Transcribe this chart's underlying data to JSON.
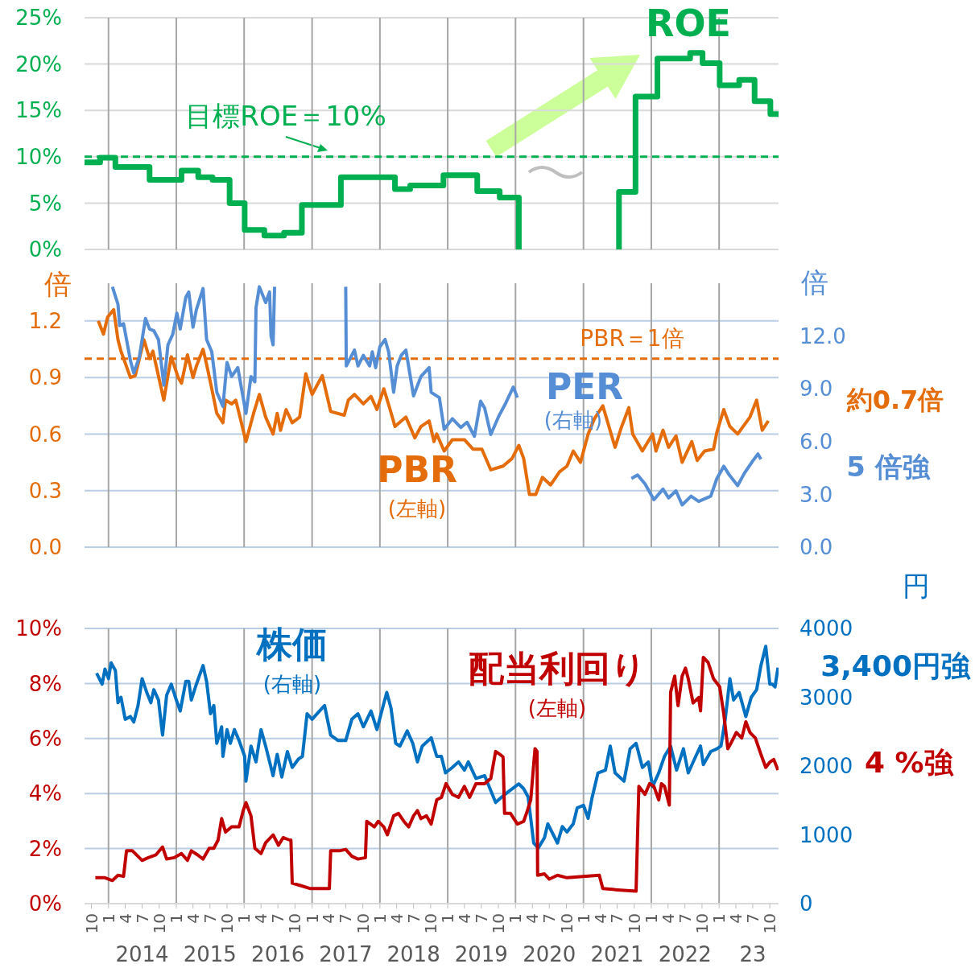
{
  "chart_data": [
    {
      "type": "step",
      "xlim": [
        "2013-08-25",
        "2023-11-17"
      ],
      "xticks": [
        {
          "value": "2014-01",
          "label": null
        },
        {
          "value": "2015-01",
          "label": null
        },
        {
          "value": "2016-01",
          "label": null
        },
        {
          "value": "2017-01",
          "label": null
        },
        {
          "value": "2018-01",
          "label": null
        },
        {
          "value": "2019-01",
          "label": null
        },
        {
          "value": "2020-01",
          "label": null
        },
        {
          "value": "2021-01",
          "label": null
        },
        {
          "value": "2022-01",
          "label": null
        },
        {
          "value": "2023-01",
          "label": null
        }
      ],
      "ylim": [
        0,
        25
      ],
      "yticks": [
        {
          "value": 0,
          "label": "0%"
        },
        {
          "value": 5,
          "label": "5%"
        },
        {
          "value": 10,
          "label": "10%"
        },
        {
          "value": 15,
          "label": "15%"
        },
        {
          "value": 20,
          "label": "20%"
        },
        {
          "value": 25,
          "label": "25%"
        }
      ],
      "grid": true,
      "tick_labels": "y",
      "ref_lines": [
        {
          "axis": "y",
          "value": 10,
          "label": "目標ROE＝10%",
          "color": "#00b050",
          "line_style": "dashed"
        }
      ],
      "series": [
        {
          "name": "ROE",
          "color": "#00b050",
          "x": [
            "2013-08-25",
            "2013-11-17",
            "2014-02-07",
            "2014-08-10",
            "2015-01-29",
            "2015-04-29",
            "2015-07-15",
            "2015-10-15",
            "2016-01-04",
            "2016-04-19",
            "2016-08-03",
            "2016-11-07",
            "2017-06-05",
            "2018-03-23",
            "2018-06-13",
            "2018-12-09",
            "2019-06-09",
            "2019-10-08",
            "2020-01-19",
            "2020-02-07",
            "2021-07-08",
            "2021-07-11",
            "2021-10-08",
            "2022-02-03",
            "2022-07-29",
            "2022-10-04",
            "2023-01-04",
            "2023-04-19",
            "2023-07-11",
            "2023-10-04",
            "2023-11-17"
          ],
          "values": [
            9.4,
            9.9,
            8.9,
            7.5,
            8.5,
            7.8,
            7.5,
            5.0,
            2.1,
            1.5,
            1.8,
            4.8,
            7.8,
            6.5,
            6.9,
            8.0,
            6.3,
            5.6,
            0,
            null,
            0,
            6.2,
            16.5,
            20.6,
            21.2,
            20.1,
            17.7,
            18.3,
            16.0,
            14.6,
            14.6
          ]
        }
      ]
    },
    {
      "type": "line",
      "xlim": [
        "2013-08-25",
        "2023-11-17"
      ],
      "xticks": [
        {
          "value": "2014-01",
          "label": null
        },
        {
          "value": "2015-01",
          "label": null
        },
        {
          "value": "2016-01",
          "label": null
        },
        {
          "value": "2017-01",
          "label": null
        },
        {
          "value": "2018-01",
          "label": null
        },
        {
          "value": "2019-01",
          "label": null
        },
        {
          "value": "2020-01",
          "label": null
        },
        {
          "value": "2021-01",
          "label": null
        },
        {
          "value": "2022-01",
          "label": null
        },
        {
          "value": "2023-01",
          "label": null
        }
      ],
      "ylim": [
        0,
        1.4
      ],
      "yticks": [
        {
          "value": 0,
          "label": "0.0"
        },
        {
          "value": 0.3,
          "label": "0.3"
        },
        {
          "value": 0.6,
          "label": "0.6"
        },
        {
          "value": 0.9,
          "label": "0.9"
        },
        {
          "value": 1.2,
          "label": "1.2"
        }
      ],
      "y2lim": [
        0,
        15
      ],
      "y2ticks": [
        {
          "value": 0,
          "label": "0.0"
        },
        {
          "value": 3,
          "label": "3.0"
        },
        {
          "value": 6,
          "label": "6.0"
        },
        {
          "value": 9,
          "label": "9.0"
        },
        {
          "value": 12,
          "label": "12.0"
        }
      ],
      "ylabel": "倍",
      "y2label": "倍",
      "grid": true,
      "tick_labels": "y",
      "ref_lines": [
        {
          "axis": "y",
          "value": 1,
          "label": "PBR＝1倍",
          "color": "#e46c0a",
          "line_style": "dashed"
        }
      ],
      "annotations": [
        "(右軸)",
        "(左軸)",
        "約0.7倍",
        "5 倍強"
      ],
      "series": [
        {
          "name": "PBR",
          "color": "#e46c0a",
          "axis": "y",
          "x": [
            "2013-11-07",
            "2013-12-05",
            "2013-12-27",
            "2014-01-29",
            "2014-02-21",
            "2014-03-09",
            "2014-04-29",
            "2014-05-25",
            "2014-07-11",
            "2014-08-10",
            "2014-08-28",
            "2014-09-13",
            "2014-10-26",
            "2014-11-17",
            "2014-12-05",
            "2015-01-11",
            "2015-01-29",
            "2015-03-02",
            "2015-04-01",
            "2015-04-19",
            "2015-05-25",
            "2015-06-13",
            "2015-07-11",
            "2015-08-07",
            "2015-09-09",
            "2015-09-23",
            "2015-10-26",
            "2015-11-17",
            "2015-12-05",
            "2016-01-11",
            "2016-02-21",
            "2016-03-23",
            "2016-04-26",
            "2016-06-05",
            "2016-06-27",
            "2016-07-15",
            "2016-08-14",
            "2016-09-16",
            "2016-10-26",
            "2016-11-28",
            "2017-01-01",
            "2017-02-25",
            "2017-04-11",
            "2017-06-23",
            "2017-07-15",
            "2017-08-17",
            "2017-10-04",
            "2017-11-14",
            "2017-12-16",
            "2018-01-22",
            "2018-02-25",
            "2018-03-23",
            "2018-05-21",
            "2018-07-08",
            "2018-08-10",
            "2018-09-23",
            "2018-10-19",
            "2018-11-03",
            "2018-12-13",
            "2019-01-26",
            "2019-04-01",
            "2019-05-17",
            "2019-07-04",
            "2019-08-21",
            "2019-10-26",
            "2019-12-13",
            "2020-01-19",
            "2020-02-14",
            "2020-03-16",
            "2020-04-19",
            "2020-05-25",
            "2020-07-08",
            "2020-08-25",
            "2020-10-04",
            "2020-11-07",
            "2020-12-16",
            "2021-01-26",
            "2021-02-28",
            "2021-04-15",
            "2021-06-20",
            "2021-07-22",
            "2021-09-02",
            "2021-09-23",
            "2021-11-14",
            "2022-01-08",
            "2022-01-26",
            "2022-03-05",
            "2022-04-04",
            "2022-05-14",
            "2022-06-16",
            "2022-08-07",
            "2022-09-05",
            "2022-10-15",
            "2022-12-02",
            "2022-12-20",
            "2023-01-26",
            "2023-02-28",
            "2023-04-11",
            "2023-05-10",
            "2023-06-16",
            "2023-07-22",
            "2023-08-21",
            "2023-09-23"
          ],
          "values": [
            1.2,
            1.13,
            1.22,
            1.26,
            1.1,
            1.04,
            0.9,
            0.91,
            1.1,
            1.0,
            1.04,
            0.97,
            0.78,
            0.91,
            1.01,
            0.9,
            0.87,
            1.02,
            0.9,
            0.96,
            1.05,
            0.97,
            0.84,
            0.71,
            0.66,
            0.78,
            0.76,
            0.78,
            0.71,
            0.56,
            0.71,
            0.81,
            0.69,
            0.6,
            0.71,
            0.62,
            0.73,
            0.66,
            0.69,
            0.92,
            0.81,
            0.91,
            0.72,
            0.7,
            0.78,
            0.81,
            0.76,
            0.8,
            0.73,
            0.84,
            0.73,
            0.64,
            0.69,
            0.58,
            0.64,
            0.67,
            0.56,
            0.6,
            0.51,
            0.57,
            0.57,
            0.52,
            0.52,
            0.41,
            0.43,
            0.47,
            0.54,
            0.47,
            0.28,
            0.28,
            0.37,
            0.33,
            0.4,
            0.43,
            0.51,
            0.45,
            0.6,
            0.68,
            0.75,
            0.53,
            0.63,
            0.74,
            0.6,
            0.51,
            0.6,
            0.51,
            0.62,
            0.53,
            0.59,
            0.45,
            0.56,
            0.46,
            0.51,
            0.52,
            0.61,
            0.73,
            0.64,
            0.6,
            0.64,
            0.69,
            0.78,
            0.62,
            0.67
          ]
        },
        {
          "name": "PER",
          "color": "#558ed5",
          "axis": "y2",
          "x": [
            "2014-01-22",
            "2014-02-21",
            "2014-03-02",
            "2014-03-23",
            "2014-04-08",
            "2014-04-29",
            "2014-05-17",
            "2014-06-16",
            "2014-07-19",
            "2014-08-10",
            "2014-09-02",
            "2014-09-27",
            "2014-10-26",
            "2014-11-17",
            "2014-12-13",
            "2015-01-04",
            "2015-01-22",
            "2015-02-21",
            "2015-03-09",
            "2015-04-01",
            "2015-04-19",
            "2015-05-25",
            "2015-06-13",
            "2015-07-11",
            "2015-08-07",
            "2015-09-09",
            "2015-10-01",
            "2015-10-26",
            "2015-11-28",
            "2016-01-11",
            "2016-02-07",
            "2016-02-28",
            "2016-03-05",
            "2016-03-23",
            "2016-04-26",
            "2016-05-17",
            "2016-05-25",
            "2016-06-05",
            "2016-06-13",
            "2016-07-01",
            "2017-07-01",
            "2017-07-04",
            "2017-08-17",
            "2017-09-05",
            "2017-10-04",
            "2017-11-07",
            "2017-11-21",
            "2017-12-09",
            "2018-01-01",
            "2018-01-29",
            "2018-02-17",
            "2018-03-16",
            "2018-04-04",
            "2018-04-26",
            "2018-05-21",
            "2018-07-01",
            "2018-08-10",
            "2018-09-23",
            "2018-10-04",
            "2018-11-17",
            "2018-12-13",
            "2019-01-26",
            "2019-03-13",
            "2019-04-15",
            "2019-05-25",
            "2019-06-27",
            "2019-07-19",
            "2019-08-21",
            "2019-10-01",
            "2019-11-10",
            "2019-12-20",
            "2020-01-11",
            "2020-02-07",
            "2021-09-16",
            "2021-10-19",
            "2021-11-28",
            "2022-01-15",
            "2022-03-05",
            "2022-04-04",
            "2022-05-14",
            "2022-06-16",
            "2022-08-03",
            "2022-09-13",
            "2022-11-17",
            "2022-12-20",
            "2023-01-26",
            "2023-02-25",
            "2023-04-11",
            "2023-05-17",
            "2023-07-01",
            "2023-07-29",
            "2023-08-14"
          ],
          "values": [
            14.8,
            13.8,
            12.6,
            12.7,
            11.8,
            10.6,
            9.9,
            10.8,
            13.0,
            12.4,
            12.3,
            11.8,
            9.2,
            11.5,
            12.1,
            13.3,
            12.4,
            14.2,
            14.5,
            12.5,
            13.5,
            14.7,
            11.8,
            11.1,
            8.8,
            8.0,
            10.5,
            9.7,
            10.2,
            7.6,
            9.7,
            9.4,
            13.6,
            14.8,
            13.9,
            14.5,
            12.0,
            11.5,
            14.8,
            null,
            14.8,
            10.3,
            11.2,
            10.3,
            10.9,
            10.3,
            11.1,
            10.2,
            11.4,
            11.8,
            11.1,
            8.8,
            10.3,
            10.9,
            11.2,
            8.6,
            9.7,
            10.2,
            8.8,
            8.5,
            6.7,
            7.3,
            6.8,
            7.1,
            6.3,
            8.3,
            7.9,
            6.4,
            7.4,
            8.2,
            9.1,
            8.5,
            null,
            3.9,
            4.1,
            3.6,
            2.7,
            3.3,
            2.8,
            3.2,
            2.4,
            2.9,
            2.6,
            2.9,
            3.9,
            4.6,
            4.1,
            3.5,
            4.2,
            4.9,
            5.3,
            5.0
          ]
        }
      ]
    },
    {
      "type": "line",
      "xlim": [
        "2013-08-25",
        "2023-11-17"
      ],
      "xticks": [
        {
          "value": "2013-10",
          "label": "10"
        },
        {
          "value": "2014-01",
          "label": "1"
        },
        {
          "value": "2014-04",
          "label": "4"
        },
        {
          "value": "2014-07",
          "label": "7"
        },
        {
          "value": "2014-10",
          "label": "10"
        },
        {
          "value": "2015-01",
          "label": "1"
        },
        {
          "value": "2015-04",
          "label": "4"
        },
        {
          "value": "2015-07",
          "label": "7"
        },
        {
          "value": "2015-10",
          "label": "10"
        },
        {
          "value": "2016-01",
          "label": "1"
        },
        {
          "value": "2016-04",
          "label": "4"
        },
        {
          "value": "2016-07",
          "label": "7"
        },
        {
          "value": "2016-10",
          "label": "10"
        },
        {
          "value": "2017-01",
          "label": "1"
        },
        {
          "value": "2017-04",
          "label": "4"
        },
        {
          "value": "2017-07",
          "label": "7"
        },
        {
          "value": "2017-10",
          "label": "10"
        },
        {
          "value": "2018-01",
          "label": "1"
        },
        {
          "value": "2018-04",
          "label": "4"
        },
        {
          "value": "2018-07",
          "label": "7"
        },
        {
          "value": "2018-10",
          "label": "10"
        },
        {
          "value": "2019-01",
          "label": "1"
        },
        {
          "value": "2019-04",
          "label": "4"
        },
        {
          "value": "2019-07",
          "label": "7"
        },
        {
          "value": "2019-10",
          "label": "10"
        },
        {
          "value": "2020-01",
          "label": "1"
        },
        {
          "value": "2020-04",
          "label": "4"
        },
        {
          "value": "2020-07",
          "label": "7"
        },
        {
          "value": "2020-10",
          "label": "10"
        },
        {
          "value": "2021-01",
          "label": "1"
        },
        {
          "value": "2021-04",
          "label": "4"
        },
        {
          "value": "2021-07",
          "label": "7"
        },
        {
          "value": "2021-10",
          "label": "10"
        },
        {
          "value": "2022-01",
          "label": "1"
        },
        {
          "value": "2022-04",
          "label": "4"
        },
        {
          "value": "2022-07",
          "label": "7"
        },
        {
          "value": "2022-10",
          "label": "10"
        },
        {
          "value": "2023-01",
          "label": "1"
        },
        {
          "value": "2023-04",
          "label": "4"
        },
        {
          "value": "2023-07",
          "label": "7"
        },
        {
          "value": "2023-10",
          "label": "10"
        }
      ],
      "x2lim": [
        "2013-08-25",
        "2023-11-17"
      ],
      "x2ticks": [
        {
          "value": "2014-07",
          "label": "2014"
        },
        {
          "value": "2015-07",
          "label": "2015"
        },
        {
          "value": "2016-07",
          "label": "2016"
        },
        {
          "value": "2017-07",
          "label": "2017"
        },
        {
          "value": "2018-07",
          "label": "2018"
        },
        {
          "value": "2019-07",
          "label": "2019"
        },
        {
          "value": "2020-07",
          "label": "2020"
        },
        {
          "value": "2021-07",
          "label": "2021"
        },
        {
          "value": "2022-07",
          "label": "2022"
        },
        {
          "value": "2023-07",
          "label": "23"
        }
      ],
      "ylim": [
        0,
        10
      ],
      "yticks": [
        {
          "value": 0,
          "label": "0%"
        },
        {
          "value": 2,
          "label": "2%"
        },
        {
          "value": 4,
          "label": "4%"
        },
        {
          "value": 6,
          "label": "6%"
        },
        {
          "value": 8,
          "label": "8%"
        },
        {
          "value": 10,
          "label": "10%"
        }
      ],
      "y2lim": [
        0,
        4000
      ],
      "y2ticks": [
        0,
        1000,
        2000,
        3000,
        4000
      ],
      "y2label": "円",
      "grid": true,
      "annotations": [
        "(右軸)",
        "(左軸)",
        "3,400円強",
        "4 %強"
      ],
      "series": [
        {
          "name": "株価",
          "color": "#0070c0",
          "axis": "y2",
          "x": [
            "2013-10-29",
            "2013-11-28",
            "2013-12-13",
            "2014-01-01",
            "2014-01-15",
            "2014-02-07",
            "2014-02-21",
            "2014-03-09",
            "2014-04-01",
            "2014-04-29",
            "2014-05-17",
            "2014-06-09",
            "2014-07-01",
            "2014-07-26",
            "2014-08-17",
            "2014-09-02",
            "2014-09-27",
            "2014-10-19",
            "2014-11-10",
            "2014-12-05",
            "2014-12-27",
            "2015-01-22",
            "2015-02-21",
            "2015-03-09",
            "2015-03-23",
            "2015-04-19",
            "2015-05-25",
            "2015-06-13",
            "2015-07-04",
            "2015-07-22",
            "2015-08-07",
            "2015-09-02",
            "2015-09-09",
            "2015-10-01",
            "2015-10-19",
            "2015-11-10",
            "2015-12-05",
            "2016-01-04",
            "2016-01-11",
            "2016-02-07",
            "2016-03-05",
            "2016-04-01",
            "2016-04-26",
            "2016-06-05",
            "2016-06-27",
            "2016-07-22",
            "2016-08-21",
            "2016-09-16",
            "2016-10-19",
            "2016-11-10",
            "2016-12-05",
            "2017-01-01",
            "2017-02-10",
            "2017-03-09",
            "2017-04-11",
            "2017-05-21",
            "2017-07-01",
            "2017-08-03",
            "2017-09-05",
            "2017-10-04",
            "2017-11-14",
            "2017-12-16",
            "2018-01-15",
            "2018-02-07",
            "2018-03-02",
            "2018-03-27",
            "2018-04-19",
            "2018-05-28",
            "2018-06-27",
            "2018-07-22",
            "2018-08-17",
            "2018-10-04",
            "2018-11-03",
            "2018-11-28",
            "2018-12-20",
            "2019-01-26",
            "2019-02-28",
            "2019-04-01",
            "2019-04-22",
            "2019-06-02",
            "2019-07-19",
            "2019-09-16",
            "2019-10-19",
            "2019-11-25",
            "2020-01-19",
            "2020-02-14",
            "2020-03-09",
            "2020-04-08",
            "2020-05-03",
            "2020-06-05",
            "2020-06-23",
            "2020-08-14",
            "2020-09-09",
            "2020-10-04",
            "2020-11-07",
            "2020-11-28",
            "2021-01-01",
            "2021-01-26",
            "2021-02-17",
            "2021-03-20",
            "2021-04-29",
            "2021-05-25",
            "2021-06-20",
            "2021-08-07",
            "2021-09-09",
            "2021-10-11",
            "2021-11-14",
            "2021-12-16",
            "2022-01-08",
            "2022-02-10",
            "2022-03-13",
            "2022-04-15",
            "2022-05-17",
            "2022-06-23",
            "2022-07-19",
            "2022-08-28",
            "2022-09-23",
            "2022-10-08",
            "2022-11-17",
            "2022-12-20",
            "2023-01-11",
            "2023-02-03",
            "2023-02-28",
            "2023-03-20",
            "2023-04-19",
            "2023-05-25",
            "2023-06-23",
            "2023-07-22",
            "2023-08-14",
            "2023-09-09",
            "2023-10-01",
            "2023-10-15",
            "2023-10-29",
            "2023-11-14"
          ],
          "values": [
            3350,
            3190,
            3410,
            3270,
            3500,
            3390,
            2920,
            3000,
            2680,
            2720,
            2640,
            2880,
            3270,
            3070,
            2920,
            3110,
            2960,
            2450,
            3030,
            3190,
            3000,
            2800,
            3230,
            3230,
            2960,
            3190,
            3460,
            3230,
            2760,
            2880,
            2330,
            2570,
            2140,
            2530,
            2330,
            2530,
            2370,
            2140,
            1780,
            2290,
            2060,
            2530,
            2290,
            1860,
            2170,
            1840,
            2210,
            1980,
            2100,
            2140,
            2760,
            2680,
            2800,
            2880,
            2450,
            2370,
            2370,
            2680,
            2760,
            2570,
            2800,
            2530,
            2840,
            3070,
            2840,
            2330,
            2290,
            2510,
            2330,
            2060,
            2290,
            2410,
            2140,
            2140,
            1900,
            1980,
            2060,
            1940,
            2060,
            1820,
            1860,
            1470,
            1550,
            1630,
            1740,
            1670,
            1550,
            880,
            810,
            960,
            1160,
            880,
            1120,
            1040,
            1160,
            1390,
            1430,
            1240,
            1550,
            1900,
            1940,
            2290,
            1900,
            1780,
            2250,
            2330,
            1980,
            2060,
            1700,
            1900,
            2140,
            2290,
            1940,
            2250,
            1900,
            2140,
            2290,
            2020,
            2210,
            2250,
            2290,
            2680,
            3270,
            2960,
            3070,
            2720,
            3000,
            3110,
            3460,
            3740,
            3190,
            3190,
            3150,
            3430
          ]
        },
        {
          "name": "配当利回り",
          "color": "#c00000",
          "axis": "y",
          "x": [
            "2013-10-22",
            "2013-12-13",
            "2014-01-22",
            "2014-02-21",
            "2014-03-23",
            "2014-04-08",
            "2014-05-10",
            "2014-07-01",
            "2014-08-03",
            "2014-09-13",
            "2014-10-19",
            "2014-11-10",
            "2014-12-20",
            "2015-01-29",
            "2015-03-02",
            "2015-03-23",
            "2015-04-26",
            "2015-05-25",
            "2015-06-27",
            "2015-07-22",
            "2015-08-14",
            "2015-09-02",
            "2015-09-23",
            "2015-10-26",
            "2015-12-05",
            "2015-12-27",
            "2016-01-11",
            "2016-02-07",
            "2016-02-28",
            "2016-04-01",
            "2016-04-26",
            "2016-06-05",
            "2016-07-04",
            "2016-07-29",
            "2016-09-02",
            "2016-09-09",
            "2016-09-16",
            "2016-11-03",
            "2016-12-20",
            "2017-04-04",
            "2017-04-11",
            "2017-05-28",
            "2017-07-01",
            "2017-08-03",
            "2017-09-05",
            "2017-10-15",
            "2017-10-22",
            "2017-12-02",
            "2017-12-23",
            "2018-01-22",
            "2018-02-10",
            "2018-03-16",
            "2018-04-11",
            "2018-05-10",
            "2018-06-05",
            "2018-07-01",
            "2018-07-22",
            "2018-08-10",
            "2018-09-09",
            "2018-10-04",
            "2018-11-03",
            "2018-11-28",
            "2018-12-23",
            "2019-01-26",
            "2019-02-28",
            "2019-04-01",
            "2019-04-29",
            "2019-06-02",
            "2019-07-19",
            "2019-08-21",
            "2019-09-16",
            "2019-10-08",
            "2019-10-26",
            "2019-11-03",
            "2019-12-05",
            "2020-01-11",
            "2020-02-14",
            "2020-03-05",
            "2020-03-23",
            "2020-04-15",
            "2020-04-26",
            "2020-04-29",
            "2020-06-05",
            "2020-07-01",
            "2020-08-14",
            "2020-10-04",
            "2021-03-27",
            "2021-04-15",
            "2021-07-04",
            "2021-10-11",
            "2021-10-26",
            "2021-11-28",
            "2021-12-23",
            "2022-01-15",
            "2022-02-10",
            "2022-02-25",
            "2022-03-13",
            "2022-04-08",
            "2022-04-15",
            "2022-05-07",
            "2022-05-25",
            "2022-06-16",
            "2022-07-04",
            "2022-07-19",
            "2022-08-14",
            "2022-09-13",
            "2022-09-23",
            "2022-10-08",
            "2022-11-03",
            "2022-12-02",
            "2023-01-04",
            "2023-01-26",
            "2023-02-17",
            "2023-03-05",
            "2023-04-04",
            "2023-05-03",
            "2023-05-25",
            "2023-06-16",
            "2023-07-15",
            "2023-08-14",
            "2023-09-09",
            "2023-10-01",
            "2023-10-22",
            "2023-11-14"
          ],
          "values": [
            0.94,
            0.94,
            0.84,
            1.03,
            0.99,
            1.92,
            1.92,
            1.57,
            1.67,
            1.77,
            2.06,
            1.62,
            1.67,
            1.82,
            1.57,
            1.92,
            1.77,
            1.62,
            2.01,
            2.01,
            2.31,
            3.09,
            2.6,
            2.79,
            2.79,
            3.38,
            3.67,
            3.19,
            2.01,
            1.82,
            2.21,
            2.5,
            2.12,
            2.4,
            2.31,
            2.31,
            0.74,
            0.65,
            0.55,
            0.55,
            1.92,
            1.92,
            1.97,
            1.72,
            1.62,
            1.67,
            2.99,
            2.79,
            2.99,
            2.79,
            2.5,
            3.19,
            3.28,
            2.99,
            2.79,
            3.19,
            3.38,
            3.09,
            3.19,
            2.89,
            3.77,
            3.86,
            4.36,
            3.97,
            3.86,
            4.26,
            3.86,
            4.36,
            4.36,
            4.55,
            5.53,
            5.43,
            5.33,
            3.28,
            3.28,
            2.89,
            2.99,
            3.38,
            3.77,
            5.63,
            5.53,
            1.03,
            1.08,
            0.89,
            1.03,
            0.94,
            1.03,
            0.55,
            0.5,
            0.45,
            4.26,
            3.97,
            4.36,
            4.26,
            3.77,
            4.36,
            4.26,
            3.58,
            7.68,
            8.27,
            7.19,
            8.27,
            8.56,
            8.17,
            7.29,
            7.49,
            7.0,
            8.95,
            8.76,
            8.17,
            7.88,
            6.9,
            5.63,
            5.82,
            6.22,
            6.02,
            6.61,
            6.22,
            6.02,
            5.43,
            4.95,
            5.14,
            5.24,
            4.85
          ]
        }
      ]
    }
  ]
}
